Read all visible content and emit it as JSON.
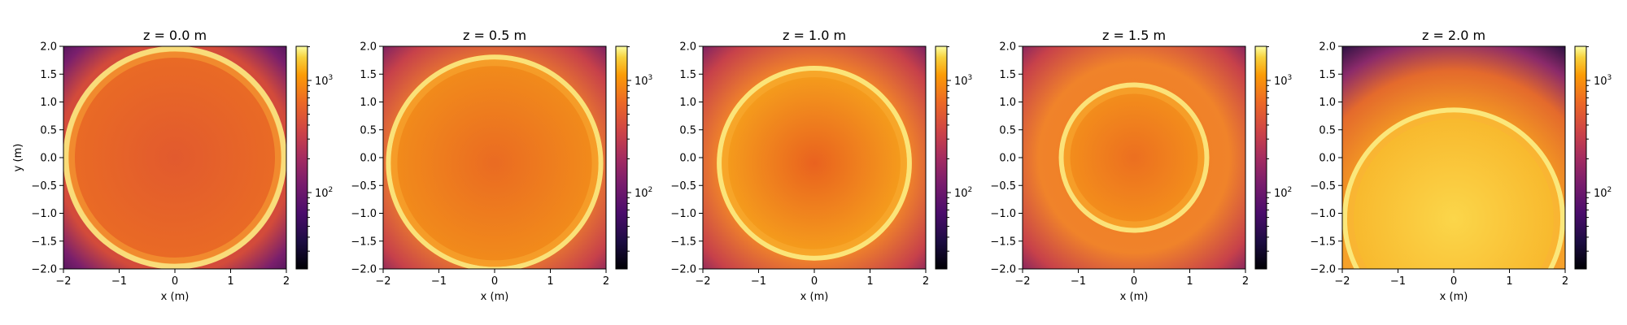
{
  "chart_data": [
    {
      "type": "heatmap",
      "title": "z = 0.0 m",
      "xlabel": "x (m)",
      "ylabel": "y (m)",
      "xlim": [
        -2,
        2
      ],
      "ylim": [
        -2,
        2
      ],
      "xticks": [
        "−2",
        "−1",
        "0",
        "1",
        "2"
      ],
      "yticks": [
        "2.0",
        "1.5",
        "1.0",
        "0.5",
        "0.0",
        "−0.5",
        "−1.0",
        "−1.5",
        "−2.0"
      ],
      "ring_center": [
        0.0,
        0.0
      ],
      "ring_radius": 2.0,
      "colorbar": {
        "scale": "log",
        "ticks": [
          {
            "base": "10",
            "exp": "3"
          },
          {
            "base": "10",
            "exp": "2"
          }
        ]
      }
    },
    {
      "type": "heatmap",
      "title": "z = 0.5 m",
      "xlabel": "x (m)",
      "ylabel": "",
      "xlim": [
        -2,
        2
      ],
      "ylim": [
        -2,
        2
      ],
      "xticks": [
        "−2",
        "−1",
        "0",
        "1",
        "2"
      ],
      "yticks": [
        "2.0",
        "1.5",
        "1.0",
        "0.5",
        "0.0",
        "−0.5",
        "−1.0",
        "−1.5",
        "−2.0"
      ],
      "ring_center": [
        0.0,
        -0.1
      ],
      "ring_radius": 1.95,
      "colorbar": {
        "scale": "log",
        "ticks": [
          {
            "base": "10",
            "exp": "3"
          },
          {
            "base": "10",
            "exp": "2"
          }
        ]
      }
    },
    {
      "type": "heatmap",
      "title": "z = 1.0 m",
      "xlabel": "x (m)",
      "ylabel": "",
      "xlim": [
        -2,
        2
      ],
      "ylim": [
        -2,
        2
      ],
      "xticks": [
        "−2",
        "−1",
        "0",
        "1",
        "2"
      ],
      "yticks": [
        "2.0",
        "1.5",
        "1.0",
        "0.5",
        "0.0",
        "−0.5",
        "−1.0",
        "−1.5",
        "−2.0"
      ],
      "ring_center": [
        0.0,
        -0.1
      ],
      "ring_radius": 1.75,
      "colorbar": {
        "scale": "log",
        "ticks": [
          {
            "base": "10",
            "exp": "3"
          },
          {
            "base": "10",
            "exp": "2"
          }
        ]
      }
    },
    {
      "type": "heatmap",
      "title": "z = 1.5 m",
      "xlabel": "x (m)",
      "ylabel": "",
      "xlim": [
        -2,
        2
      ],
      "ylim": [
        -2,
        2
      ],
      "xticks": [
        "−2",
        "−1",
        "0",
        "1",
        "2"
      ],
      "yticks": [
        "2.0",
        "1.5",
        "1.0",
        "0.5",
        "0.0",
        "−0.5",
        "−1.0",
        "−1.5",
        "−2.0"
      ],
      "ring_center": [
        0.0,
        0.0
      ],
      "ring_radius": 1.35,
      "colorbar": {
        "scale": "log",
        "ticks": [
          {
            "base": "10",
            "exp": "3"
          },
          {
            "base": "10",
            "exp": "2"
          }
        ]
      }
    },
    {
      "type": "heatmap",
      "title": "z = 2.0 m",
      "xlabel": "x (m)",
      "ylabel": "",
      "xlim": [
        -2,
        2
      ],
      "ylim": [
        -2,
        2
      ],
      "xticks": [
        "−2",
        "−1",
        "0",
        "1",
        "2"
      ],
      "yticks": [
        "2.0",
        "1.5",
        "1.0",
        "0.5",
        "0.0",
        "−0.5",
        "−1.0",
        "−1.5",
        "−2.0"
      ],
      "ring_center": [
        0.0,
        -1.1
      ],
      "ring_radius": 2.0,
      "colorbar": {
        "scale": "log",
        "ticks": [
          {
            "base": "10",
            "exp": "3"
          },
          {
            "base": "10",
            "exp": "2"
          }
        ]
      }
    }
  ],
  "colormap": "inferno"
}
